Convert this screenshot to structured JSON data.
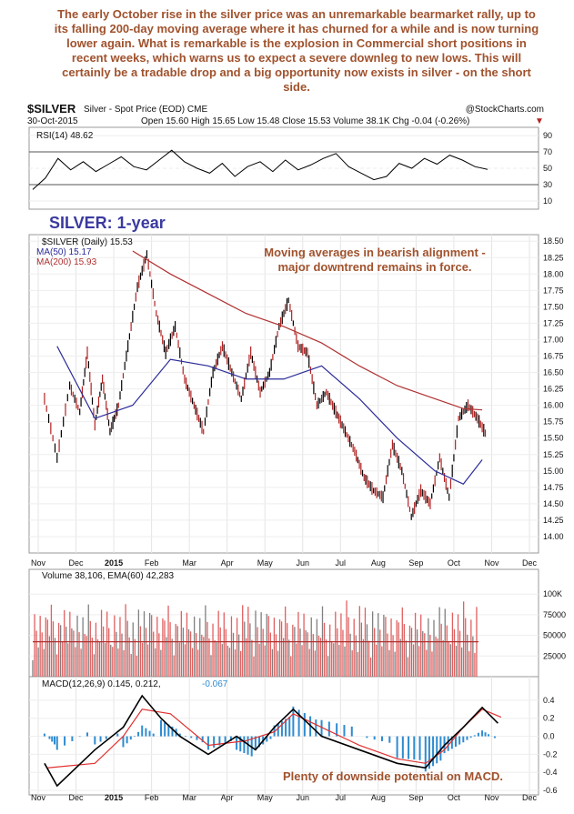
{
  "commentary": "The early October rise in the silver price was an unremarkable bearmarket rally, up to its falling 200-day moving average where it has churned for a while and is now turning lower again. What is remarkable is the explosion in Commercial short positions in recent weeks, which warns us to expect a severe downleg to new lows. This will certainly be a tradable drop and a big opportunity now exists in silver - on the short side.",
  "header": {
    "symbol": "$SILVER",
    "description": "Silver - Spot Price (EOD) CME",
    "date": "30-Oct-2015",
    "brand": "@StockCharts.com",
    "quote": "Open 15.60  High 15.65  Low 15.48  Close 15.53  Volume 38.1K  Chg -0.04 (-0.26%)",
    "chg_arrow": "▼"
  },
  "panels": {
    "rsi_legend": "RSI(14) 48.62",
    "price_legend": "$SILVER (Daily) 15.53",
    "ma50_legend": "MA(50) 15.17",
    "ma200_legend": "MA(200) 15.93",
    "vol_legend": "Volume 38,106, EMA(60) 42,283",
    "macd_legend_a": "MACD(12,26,9) 0.145, 0.212,",
    "macd_legend_b": "-0.067"
  },
  "annotations": {
    "title": "SILVER: 1-year",
    "ma_note_1": "Moving averages in bearish alignment -",
    "ma_note_2": "major downtrend remains in force.",
    "macd_note": "Plenty of downside potential on MACD."
  },
  "colors": {
    "price_up": "#000000",
    "price_down": "#b22222",
    "ma50": "#2b2b9a",
    "ma200": "#b03030",
    "rsi": "#000000",
    "macd": "#000000",
    "signal": "#e03030",
    "hist": "#2e8bd0",
    "vol_up": "#808080",
    "vol_down": "#e06060",
    "vol_ema": "#b03030",
    "annotation": "#a0522d",
    "title": "#3a3aa0"
  },
  "chart_data": {
    "type": "line",
    "x_labels": [
      "Nov",
      "Dec",
      "2015",
      "Feb",
      "Mar",
      "Apr",
      "May",
      "Jun",
      "Jul",
      "Aug",
      "Sep",
      "Oct",
      "Nov",
      "Dec"
    ],
    "price": {
      "ylim": [
        13.75,
        18.6
      ],
      "y_ticks": [
        "18.50",
        "18.25",
        "18.00",
        "17.75",
        "17.50",
        "17.25",
        "17.00",
        "16.75",
        "16.50",
        "16.25",
        "16.00",
        "15.75",
        "15.50",
        "15.25",
        "15.00",
        "14.75",
        "14.50",
        "14.25",
        "14.00"
      ],
      "close_points": [
        [
          "Nov",
          16.1
        ],
        [
          "Nov",
          15.2
        ],
        [
          "Nov",
          16.3
        ],
        [
          "Dec",
          15.9
        ],
        [
          "Dec",
          16.8
        ],
        [
          "Dec",
          15.7
        ],
        [
          "Dec",
          16.4
        ],
        [
          "Dec",
          15.6
        ],
        [
          "2015",
          16.0
        ],
        [
          "2015",
          16.9
        ],
        [
          "2015",
          17.8
        ],
        [
          "2015",
          18.3
        ],
        [
          "Feb",
          17.4
        ],
        [
          "Feb",
          16.8
        ],
        [
          "Feb",
          17.2
        ],
        [
          "Feb",
          16.4
        ],
        [
          "Mar",
          16.0
        ],
        [
          "Mar",
          15.6
        ],
        [
          "Mar",
          16.5
        ],
        [
          "Mar",
          16.9
        ],
        [
          "Apr",
          16.5
        ],
        [
          "Apr",
          16.1
        ],
        [
          "Apr",
          16.8
        ],
        [
          "Apr",
          16.2
        ],
        [
          "May",
          16.5
        ],
        [
          "May",
          17.2
        ],
        [
          "May",
          17.6
        ],
        [
          "May",
          16.9
        ],
        [
          "Jun",
          16.8
        ],
        [
          "Jun",
          16.0
        ],
        [
          "Jun",
          16.2
        ],
        [
          "Jun",
          15.9
        ],
        [
          "Jul",
          15.6
        ],
        [
          "Jul",
          15.3
        ],
        [
          "Jul",
          14.9
        ],
        [
          "Jul",
          14.7
        ],
        [
          "Aug",
          14.6
        ],
        [
          "Aug",
          15.4
        ],
        [
          "Aug",
          15.0
        ],
        [
          "Aug",
          14.3
        ],
        [
          "Sep",
          14.7
        ],
        [
          "Sep",
          14.5
        ],
        [
          "Sep",
          15.2
        ],
        [
          "Sep",
          14.6
        ],
        [
          "Oct",
          15.8
        ],
        [
          "Oct",
          16.0
        ],
        [
          "Oct",
          15.8
        ],
        [
          "Oct",
          15.53
        ]
      ],
      "ma50_points": [
        [
          "Nov",
          16.9
        ],
        [
          "Dec",
          15.8
        ],
        [
          "2015",
          16.0
        ],
        [
          "Feb",
          16.7
        ],
        [
          "Mar",
          16.6
        ],
        [
          "Apr",
          16.4
        ],
        [
          "May",
          16.4
        ],
        [
          "Jun",
          16.6
        ],
        [
          "Jul",
          16.1
        ],
        [
          "Aug",
          15.5
        ],
        [
          "Sep",
          15.0
        ],
        [
          "Oct",
          14.8
        ],
        [
          "Oct",
          15.17
        ]
      ],
      "ma200_points": [
        [
          "2015",
          18.35
        ],
        [
          "Feb",
          18.0
        ],
        [
          "Mar",
          17.7
        ],
        [
          "Apr",
          17.4
        ],
        [
          "May",
          17.2
        ],
        [
          "Jun",
          16.95
        ],
        [
          "Jul",
          16.6
        ],
        [
          "Aug",
          16.3
        ],
        [
          "Sep",
          16.1
        ],
        [
          "Oct",
          15.95
        ],
        [
          "Oct",
          15.93
        ]
      ]
    },
    "rsi": {
      "ylim": [
        0,
        100
      ],
      "y_ticks": [
        "90",
        "70",
        "50",
        "30",
        "10"
      ],
      "values": [
        24,
        38,
        62,
        48,
        58,
        46,
        55,
        64,
        52,
        48,
        60,
        72,
        58,
        50,
        44,
        56,
        40,
        52,
        58,
        46,
        60,
        48,
        54,
        62,
        68,
        52,
        44,
        36,
        40,
        56,
        50,
        62,
        55,
        66,
        60,
        52,
        48.62
      ]
    },
    "volume": {
      "ylim": [
        0,
        130000
      ],
      "y_ticks": [
        "100K",
        "75000",
        "50000",
        "25000"
      ],
      "ema_level": 42283,
      "last_volume": 38106
    },
    "macd": {
      "ylim": [
        -0.65,
        0.5
      ],
      "y_ticks": [
        "0.4",
        "0.2",
        "0.0",
        "-0.2",
        "-0.4",
        "-0.6"
      ],
      "macd_points": [
        [
          "Nov",
          -0.3
        ],
        [
          "Nov",
          -0.55
        ],
        [
          "Dec",
          -0.15
        ],
        [
          "2015",
          0.1
        ],
        [
          "2015",
          0.45
        ],
        [
          "Feb",
          0.2
        ],
        [
          "Feb",
          0.0
        ],
        [
          "Mar",
          -0.2
        ],
        [
          "Apr",
          0.0
        ],
        [
          "Apr",
          -0.15
        ],
        [
          "May",
          0.1
        ],
        [
          "May",
          0.3
        ],
        [
          "Jun",
          0.0
        ],
        [
          "Jul",
          -0.15
        ],
        [
          "Aug",
          -0.3
        ],
        [
          "Sep",
          -0.35
        ],
        [
          "Sep",
          -0.1
        ],
        [
          "Oct",
          0.1
        ],
        [
          "Oct",
          0.32
        ],
        [
          "Nov",
          0.145
        ]
      ],
      "signal_points": [
        [
          "Nov",
          -0.35
        ],
        [
          "Dec",
          -0.3
        ],
        [
          "2015",
          0.0
        ],
        [
          "2015",
          0.3
        ],
        [
          "Feb",
          0.25
        ],
        [
          "Mar",
          -0.1
        ],
        [
          "Apr",
          -0.05
        ],
        [
          "May",
          0.05
        ],
        [
          "May",
          0.25
        ],
        [
          "Jun",
          0.1
        ],
        [
          "Jul",
          -0.1
        ],
        [
          "Aug",
          -0.25
        ],
        [
          "Sep",
          -0.3
        ],
        [
          "Sep",
          -0.15
        ],
        [
          "Oct",
          0.1
        ],
        [
          "Oct",
          0.3
        ],
        [
          "Nov",
          0.212
        ]
      ],
      "hist_last": -0.067
    }
  }
}
